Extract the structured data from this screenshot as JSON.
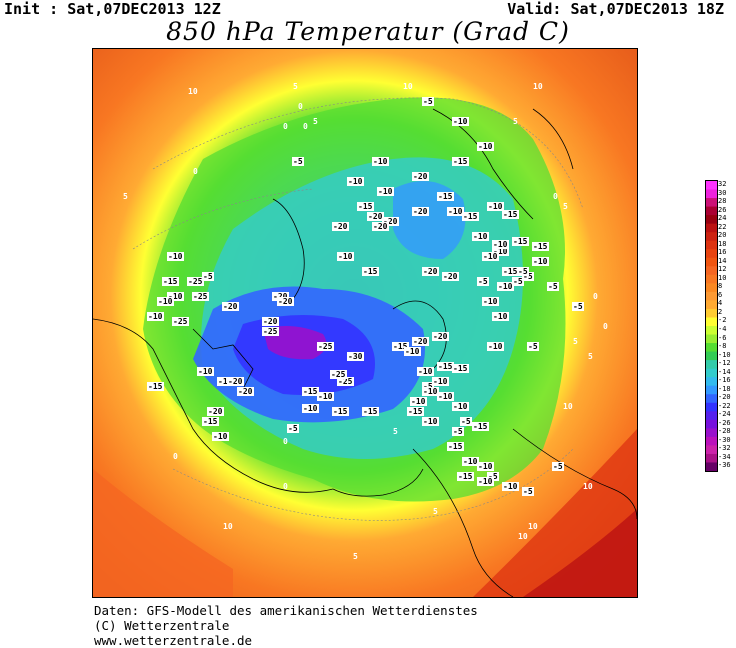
{
  "header": {
    "init": "Init : Sat,07DEC2013 12Z",
    "valid": "Valid: Sat,07DEC2013 18Z",
    "title": "850 hPa Temperatur (Grad C)"
  },
  "credits": {
    "line1": "Daten: GFS-Modell des amerikanischen Wetterdienstes",
    "line2": "(C) Wetterzentrale",
    "line3": "www.wetterzentrale.de"
  },
  "legend": {
    "ticks": [
      "32",
      "30",
      "28",
      "26",
      "24",
      "22",
      "20",
      "18",
      "16",
      "14",
      "12",
      "10",
      "8",
      "6",
      "4",
      "2",
      "-2",
      "-4",
      "-6",
      "-8",
      "-10",
      "-12",
      "-14",
      "-16",
      "-18",
      "-20",
      "-22",
      "-24",
      "-26",
      "-28",
      "-30",
      "-32",
      "-34",
      "-36"
    ],
    "colors": [
      "#ff33ff",
      "#ee22dd",
      "#cc1177",
      "#aa0033",
      "#990011",
      "#bb1111",
      "#cc2211",
      "#dd3311",
      "#e84411",
      "#f05511",
      "#f56622",
      "#f87722",
      "#fa8822",
      "#fc9933",
      "#ffaa33",
      "#ffcc33",
      "#ffff33",
      "#ccff33",
      "#99ee33",
      "#55dd33",
      "#33cc55",
      "#33ccaa",
      "#33cccc",
      "#33bbee",
      "#3399ff",
      "#3366ff",
      "#3333ff",
      "#5522ee",
      "#7711dd",
      "#9911cc",
      "#bb11bb",
      "#cc22aa",
      "#aa1188",
      "#660066"
    ]
  },
  "map_labels": [
    {
      "t": "10"
    },
    {
      "t": "5"
    },
    {
      "t": "0"
    },
    {
      "t": "0"
    },
    {
      "t": "0"
    },
    {
      "t": "5"
    },
    {
      "t": "10"
    },
    {
      "t": "10"
    },
    {
      "t": "-5"
    },
    {
      "t": "-10"
    },
    {
      "t": "5"
    },
    {
      "t": "-5"
    },
    {
      "t": "0"
    },
    {
      "t": "-10"
    },
    {
      "t": "-15"
    },
    {
      "t": "-10"
    },
    {
      "t": "-20"
    },
    {
      "t": "-15"
    },
    {
      "t": "-10"
    },
    {
      "t": "-10"
    },
    {
      "t": "5"
    },
    {
      "t": "-15"
    },
    {
      "t": "-20"
    },
    {
      "t": "-20"
    },
    {
      "t": "-20"
    },
    {
      "t": "-10"
    },
    {
      "t": "-15"
    },
    {
      "t": "5"
    },
    {
      "t": "-10"
    },
    {
      "t": "-15"
    },
    {
      "t": "-20"
    },
    {
      "t": "-20"
    },
    {
      "t": "-10"
    },
    {
      "t": "-15"
    },
    {
      "t": "-10"
    },
    {
      "t": "-15"
    },
    {
      "t": "-20"
    },
    {
      "t": "-20"
    },
    {
      "t": "-25"
    },
    {
      "t": "-20"
    },
    {
      "t": "-10"
    },
    {
      "t": "-15"
    },
    {
      "t": "-10"
    },
    {
      "t": "-10"
    },
    {
      "t": "-25"
    },
    {
      "t": "-5"
    },
    {
      "t": "-15"
    },
    {
      "t": "-25"
    },
    {
      "t": "-20"
    },
    {
      "t": "-10"
    },
    {
      "t": "-10"
    },
    {
      "t": "-25"
    },
    {
      "t": "-20"
    },
    {
      "t": "-20"
    },
    {
      "t": "-10"
    },
    {
      "t": "-15"
    },
    {
      "t": "-20"
    },
    {
      "t": "-30"
    },
    {
      "t": "-25"
    },
    {
      "t": "-20"
    },
    {
      "t": "-25"
    },
    {
      "t": "-25"
    },
    {
      "t": "-20"
    },
    {
      "t": "-15"
    },
    {
      "t": "-15"
    },
    {
      "t": "-10"
    },
    {
      "t": "-10"
    },
    {
      "t": "-15"
    },
    {
      "t": "-15"
    },
    {
      "t": "-5"
    },
    {
      "t": "-15"
    },
    {
      "t": "-10"
    },
    {
      "t": "-10"
    },
    {
      "t": "-5"
    },
    {
      "t": "-10"
    },
    {
      "t": "-10"
    },
    {
      "t": "-15"
    },
    {
      "t": "-10"
    },
    {
      "t": "-5"
    },
    {
      "t": "-5"
    },
    {
      "t": "-15"
    },
    {
      "t": "-15"
    },
    {
      "t": "-10"
    },
    {
      "t": "-10"
    },
    {
      "t": "-10"
    },
    {
      "t": "-15"
    },
    {
      "t": "-10"
    },
    {
      "t": "-10"
    },
    {
      "t": "-15"
    },
    {
      "t": "-10"
    },
    {
      "t": "-20"
    },
    {
      "t": "-20"
    },
    {
      "t": "-10"
    },
    {
      "t": "-15"
    },
    {
      "t": "-5"
    },
    {
      "t": "-10"
    },
    {
      "t": "-5"
    },
    {
      "t": "-10"
    },
    {
      "t": "-5"
    },
    {
      "t": "-5"
    },
    {
      "t": "-10"
    },
    {
      "t": "-10"
    },
    {
      "t": "-5"
    },
    {
      "t": "-5"
    },
    {
      "t": "-5"
    },
    {
      "t": "-15"
    },
    {
      "t": "-10"
    },
    {
      "t": "-10"
    },
    {
      "t": "-5"
    },
    {
      "t": "-10"
    },
    {
      "t": "-15"
    },
    {
      "t": "-10"
    },
    {
      "t": "0"
    },
    {
      "t": "5"
    },
    {
      "t": "5"
    },
    {
      "t": "0"
    },
    {
      "t": "0"
    },
    {
      "t": "5"
    },
    {
      "t": "10"
    },
    {
      "t": "10"
    },
    {
      "t": "10"
    },
    {
      "t": "5"
    },
    {
      "t": "0"
    },
    {
      "t": "-5"
    },
    {
      "t": "-5"
    },
    {
      "t": "0"
    },
    {
      "t": "0"
    },
    {
      "t": "5"
    },
    {
      "t": "10"
    },
    {
      "t": "10"
    }
  ]
}
